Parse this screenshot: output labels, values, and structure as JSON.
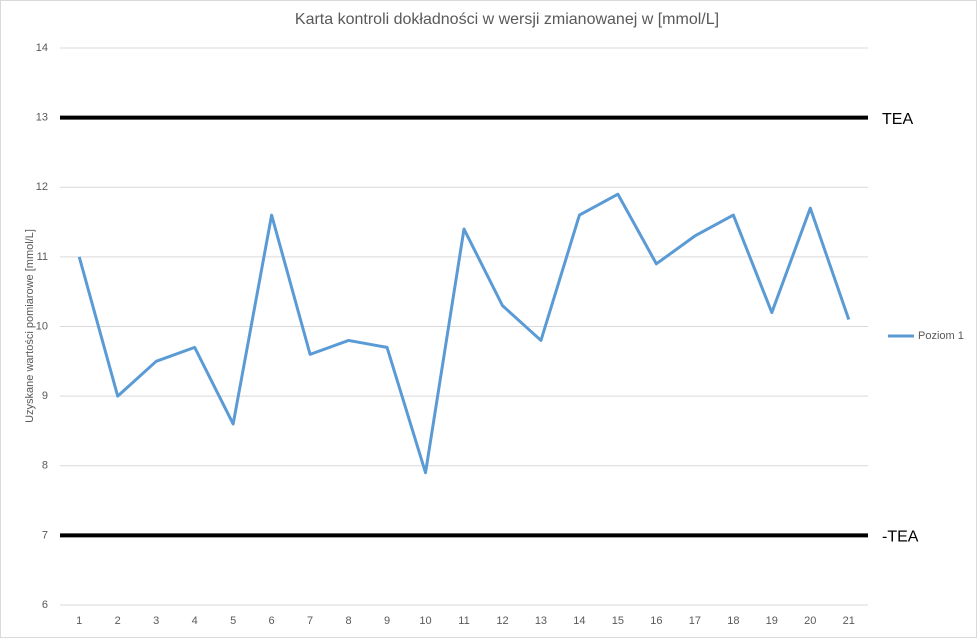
{
  "chart_data": {
    "type": "line",
    "title": "Karta kontroli dokładności w wersji zmianowanej w [mmol/L]",
    "y_label": "Uzyskane wartości pomiarowe [mmol/L]",
    "categories": [
      "1",
      "2",
      "3",
      "4",
      "5",
      "6",
      "7",
      "8",
      "9",
      "10",
      "11",
      "12",
      "13",
      "14",
      "15",
      "16",
      "17",
      "18",
      "19",
      "20",
      "21"
    ],
    "series": [
      {
        "name": "Poziom 1",
        "color": "#5b9bd5",
        "values": [
          11,
          9,
          9.5,
          9.7,
          8.6,
          11.6,
          9.6,
          9.8,
          9.7,
          7.9,
          11.4,
          10.3,
          9.8,
          11.6,
          11.9,
          10.9,
          11.3,
          11.6,
          10.2,
          11.7,
          10.1
        ]
      }
    ],
    "reference_lines": [
      {
        "value": 13,
        "label": "TEA",
        "color": "#000000"
      },
      {
        "value": 7,
        "label": "-TEA",
        "color": "#000000"
      }
    ],
    "ylim": [
      6,
      14
    ],
    "yticks": [
      6,
      7,
      8,
      9,
      10,
      11,
      12,
      13,
      14
    ],
    "grid": true,
    "legend": "right"
  }
}
